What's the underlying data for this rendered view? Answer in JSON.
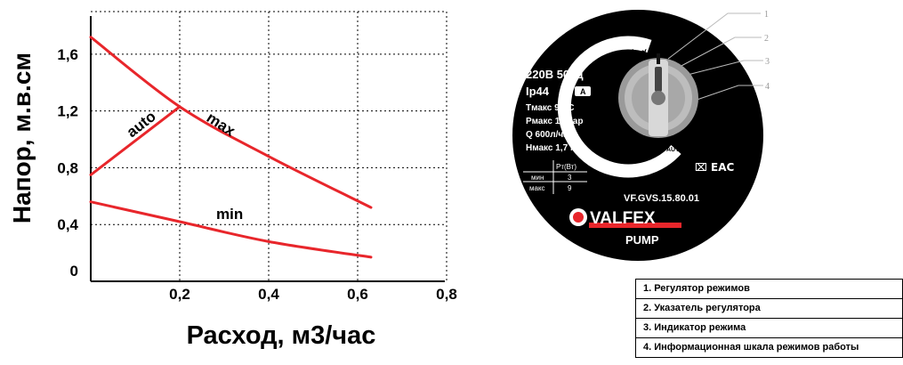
{
  "chart_data": {
    "type": "line",
    "xlabel": "Расход, м3/час",
    "ylabel": "Напор, м.в.см",
    "x_ticks": [
      "0,2",
      "0,4",
      "0,6",
      "0,8"
    ],
    "y_ticks": [
      "0",
      "0,4",
      "0,8",
      "1,2",
      "1,6"
    ],
    "xlim": [
      0,
      0.8
    ],
    "ylim": [
      0,
      1.9
    ],
    "grid": true,
    "series": [
      {
        "name": "max",
        "x": [
          0,
          0.2,
          0.4,
          0.63
        ],
        "y": [
          1.72,
          1.23,
          0.88,
          0.52
        ]
      },
      {
        "name": "auto",
        "x": [
          0,
          0.2
        ],
        "y": [
          0.75,
          1.23
        ]
      },
      {
        "name": "min",
        "x": [
          0,
          0.2,
          0.4,
          0.63
        ],
        "y": [
          0.56,
          0.42,
          0.28,
          0.17
        ]
      }
    ],
    "line_color": "#e8262b"
  },
  "pump": {
    "voltage": "220В 50Гц",
    "ip": "Ip44",
    "class_badge": "A",
    "tmax": "Tмакс 95°C",
    "pmax": "Pмакс 10 бар",
    "flow": "Q 600л/час",
    "hmax": "Hмакс 1,7 м",
    "table_header": "Рт(Вт)",
    "table_rows": [
      [
        "мин",
        "3"
      ],
      [
        "макс",
        "9"
      ]
    ],
    "model": "VF.GVS.15.80.01",
    "brand": "VALFEX",
    "brand_sub": "PUMP",
    "dial_max": "max",
    "dial_min": "min",
    "dial_auto": "AUTO",
    "marks": "⌧ ЕАС",
    "callouts": [
      "1",
      "2",
      "3",
      "4"
    ],
    "disc_color": "#000000",
    "brand_color": "#e8262b"
  },
  "legend": [
    "1. Регулятор режимов",
    "2. Указатель регулятора",
    "3. Индикатор режима",
    "4. Информационная шкала режимов работы"
  ]
}
